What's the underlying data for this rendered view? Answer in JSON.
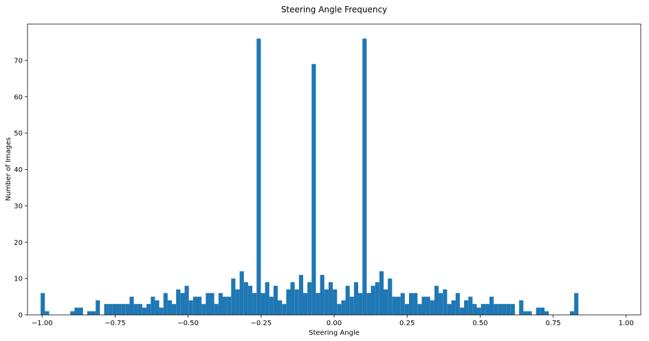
{
  "chart_data": {
    "type": "bar",
    "title": "Steering Angle Frequency",
    "xlabel": "Steering Angle",
    "ylabel": "Number of Images",
    "xlim": [
      -1.05,
      1.05
    ],
    "ylim": [
      0,
      80
    ],
    "grid": false,
    "bar_color": "#1f77b4",
    "bin_width": 0.0145,
    "xticks": [
      {
        "value": -1.0,
        "label": "−1.00"
      },
      {
        "value": -0.75,
        "label": "−0.75"
      },
      {
        "value": -0.5,
        "label": "−0.50"
      },
      {
        "value": -0.25,
        "label": "−0.25"
      },
      {
        "value": 0.0,
        "label": "0.00"
      },
      {
        "value": 0.25,
        "label": "0.25"
      },
      {
        "value": 0.5,
        "label": "0.50"
      },
      {
        "value": 0.75,
        "label": "0.75"
      },
      {
        "value": 1.0,
        "label": "1.00"
      }
    ],
    "yticks": [
      {
        "value": 0,
        "label": "0"
      },
      {
        "value": 10,
        "label": "10"
      },
      {
        "value": 20,
        "label": "20"
      },
      {
        "value": 30,
        "label": "30"
      },
      {
        "value": 40,
        "label": "40"
      },
      {
        "value": 50,
        "label": "50"
      },
      {
        "value": 60,
        "label": "60"
      },
      {
        "value": 70,
        "label": "70"
      }
    ],
    "bin_start": -1.005,
    "counts": [
      6,
      1,
      0,
      0,
      0,
      0,
      0,
      1,
      2,
      2,
      0,
      1,
      1,
      4,
      0,
      3,
      3,
      3,
      3,
      3,
      3,
      5,
      3,
      3,
      2,
      3,
      5,
      4,
      2,
      6,
      4,
      3,
      7,
      6,
      8,
      4,
      5,
      5,
      3,
      6,
      6,
      3,
      6,
      5,
      5,
      10,
      7,
      12,
      9,
      8,
      6,
      76,
      6,
      9,
      5,
      8,
      4,
      3,
      7,
      9,
      7,
      11,
      6,
      9,
      69,
      6,
      11,
      7,
      9,
      7,
      3,
      4,
      8,
      5,
      9,
      6,
      76,
      6,
      8,
      9,
      12,
      7,
      10,
      5,
      5,
      6,
      3,
      6,
      6,
      3,
      5,
      5,
      4,
      8,
      6,
      7,
      3,
      4,
      6,
      2,
      4,
      5,
      3,
      2,
      3,
      3,
      5,
      3,
      3,
      3,
      3,
      3,
      0,
      4,
      1,
      1,
      0,
      2,
      2,
      1,
      0,
      0,
      0,
      0,
      0,
      1,
      6
    ]
  }
}
